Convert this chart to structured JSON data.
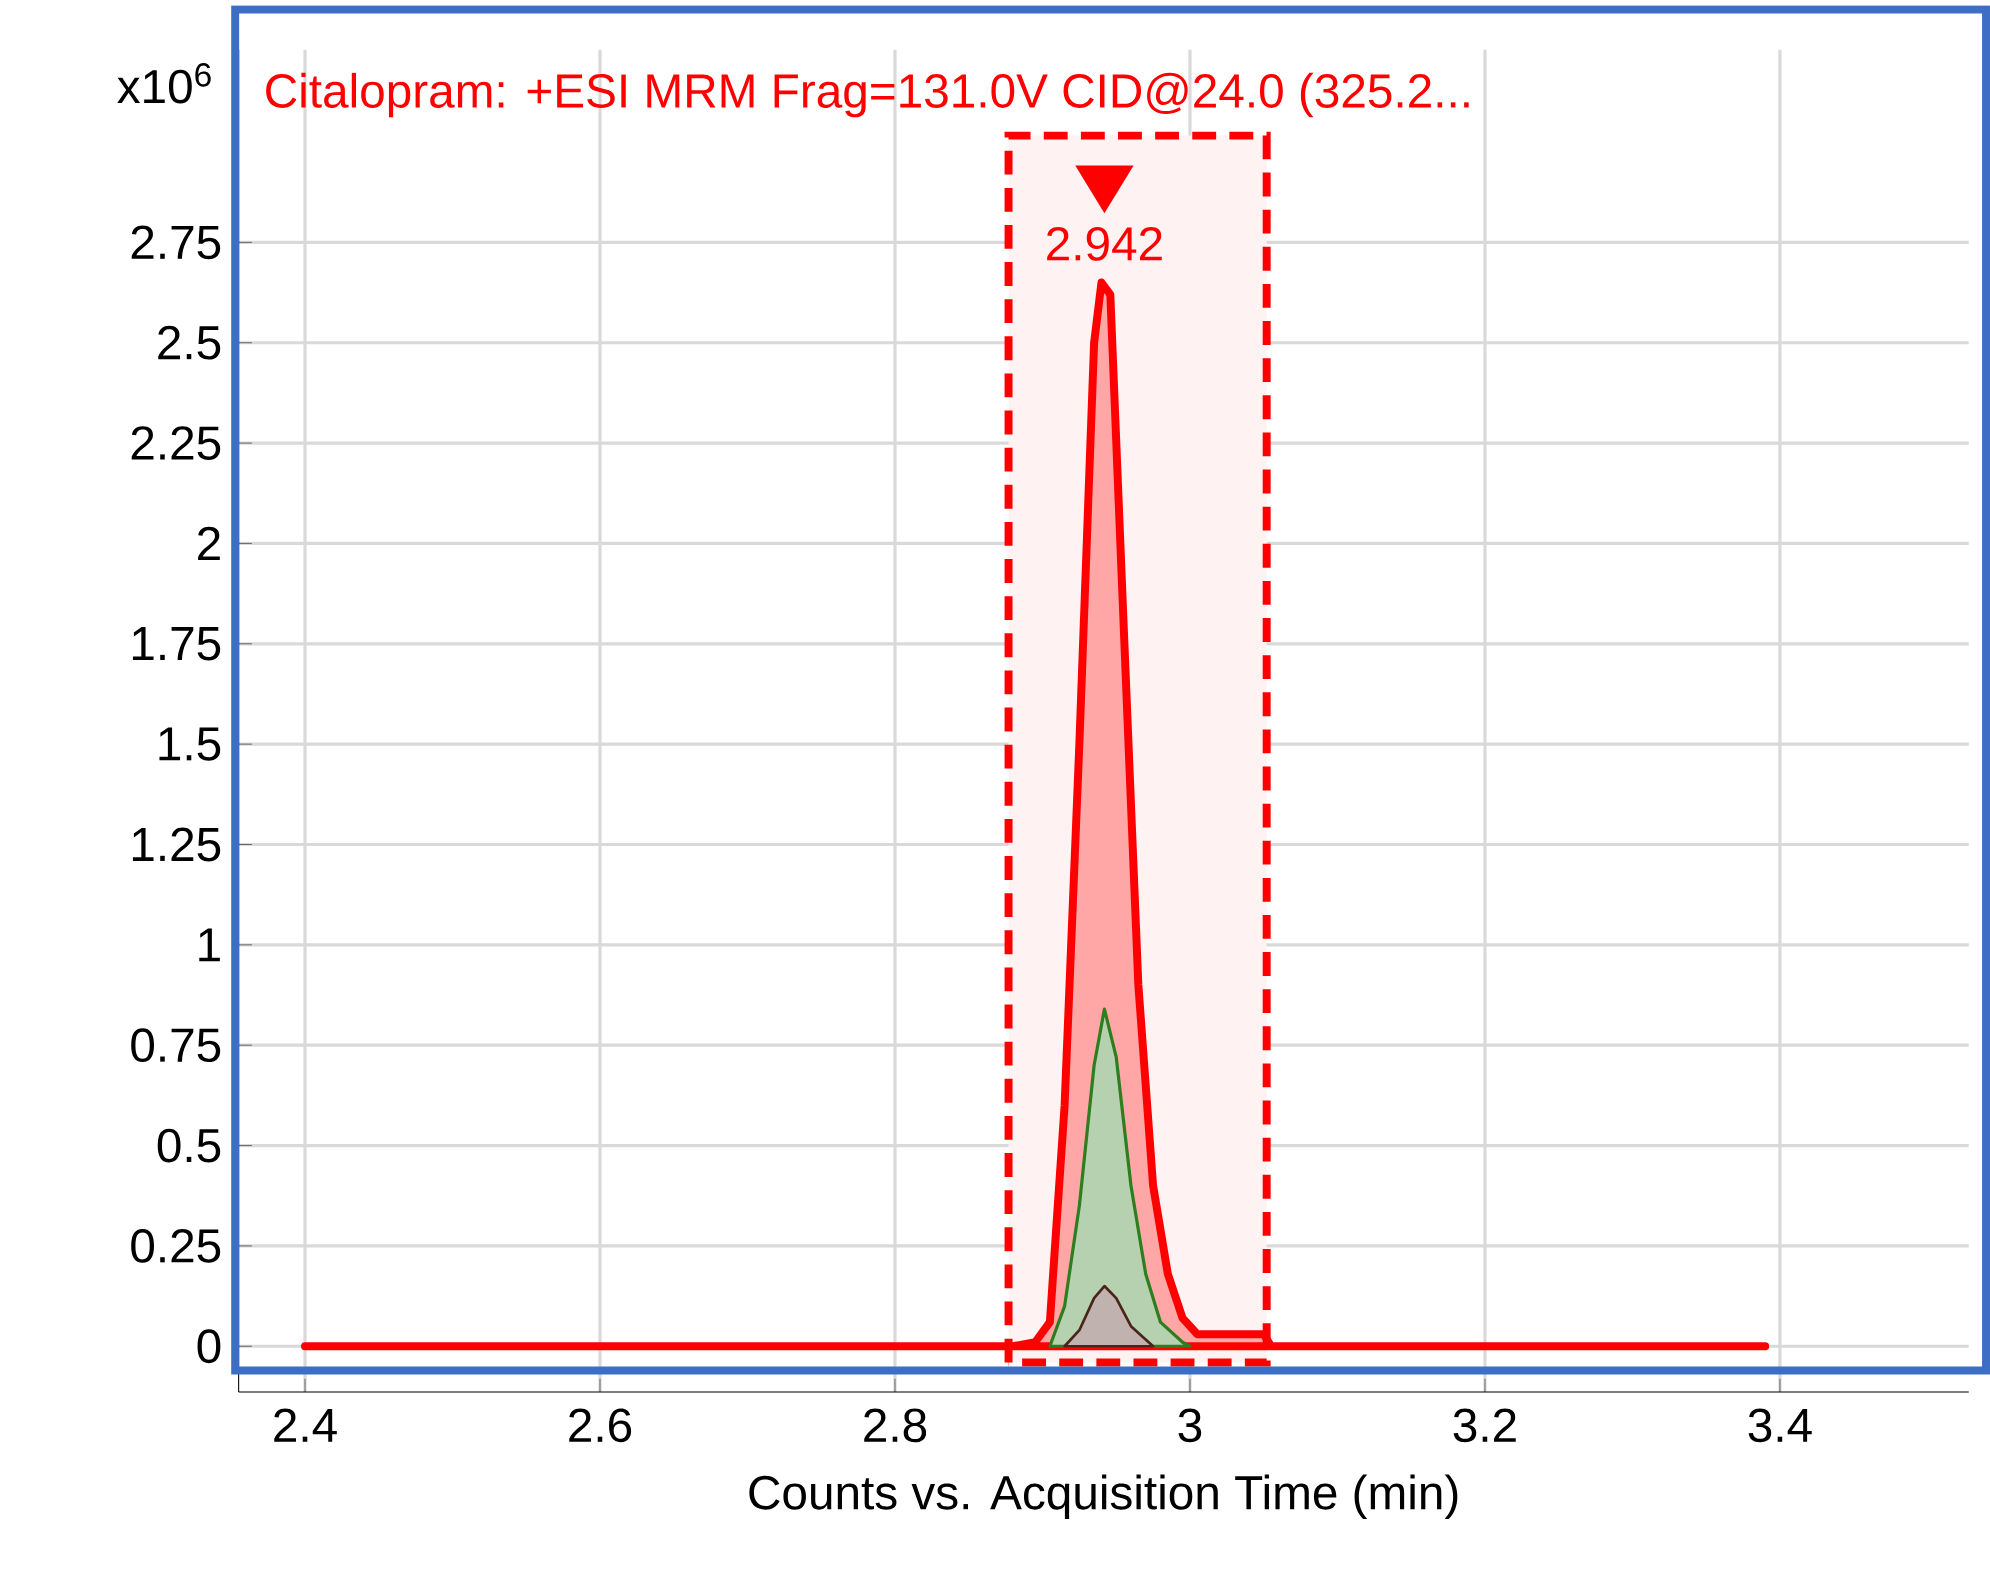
{
  "chart_data": {
    "type": "area",
    "title": "Citalopram: +ESI MRM Frag=131.0V CID@24.0 (325.2...",
    "xlabel": "Counts vs. Acquisition Time (min)",
    "ylabel": "x10$^{6}$",
    "xlim": [
      2.355,
      3.528
    ],
    "ylim": [
      -0.114,
      3.23
    ],
    "xticks": [
      2.4,
      2.6,
      2.8,
      3,
      3.2,
      3.4
    ],
    "yticks": [
      0,
      0.25,
      0.5,
      0.75,
      1,
      1.25,
      1.5,
      1.75,
      2,
      2.25,
      2.5,
      2.75
    ],
    "grid": true,
    "marker": "none",
    "line_style": "solid",
    "series": [
      {
        "color": "#ff0000",
        "x": [
          2.4,
          2.88,
          2.895,
          2.905,
          2.915,
          2.925,
          2.935,
          2.94,
          2.946,
          2.955,
          2.965,
          2.975,
          2.985,
          2.995,
          3.005,
          3.05,
          3.055,
          3.39
        ],
        "values": [
          0,
          0,
          0.01,
          0.06,
          0.6,
          1.5,
          2.5,
          2.65,
          2.62,
          1.8,
          0.9,
          0.4,
          0.18,
          0.07,
          0.03,
          0.03,
          0,
          0
        ]
      },
      {
        "color": "#2e7d1e",
        "x": [
          2.905,
          2.915,
          2.925,
          2.935,
          2.942,
          2.95,
          2.96,
          2.97,
          2.98,
          2.995,
          3.0
        ],
        "values": [
          0,
          0.1,
          0.35,
          0.7,
          0.84,
          0.72,
          0.4,
          0.18,
          0.06,
          0.01,
          0
        ]
      },
      {
        "color": "#4a2418",
        "x": [
          2.915,
          2.925,
          2.935,
          2.942,
          2.95,
          2.96,
          2.975
        ],
        "values": [
          0,
          0.04,
          0.12,
          0.15,
          0.12,
          0.05,
          0
        ]
      }
    ],
    "bands": [
      {
        "axis": "x",
        "from": 2.877,
        "to": 3.052,
        "color": "#fff2f2"
      }
    ],
    "annotations": [
      {
        "text": "2.942",
        "x": 2.942,
        "y": 2.65
      }
    ]
  }
}
